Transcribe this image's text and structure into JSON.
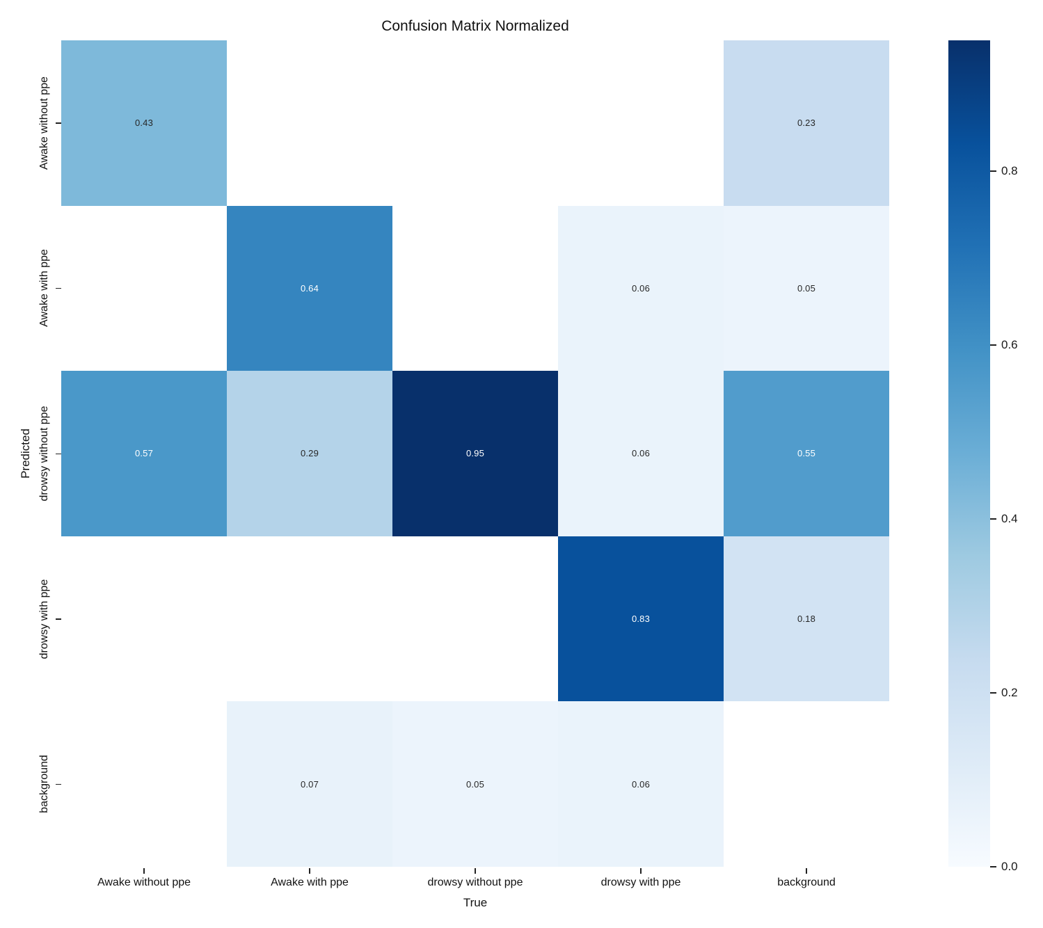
{
  "chart_data": {
    "type": "heatmap",
    "title": "Confusion Matrix Normalized",
    "xlabel": "True",
    "ylabel": "Predicted",
    "x_categories": [
      "Awake without ppe",
      "Awake with ppe",
      "drowsy without ppe",
      "drowsy with ppe",
      "background"
    ],
    "y_categories": [
      "Awake without ppe",
      "Awake with ppe",
      "drowsy without ppe",
      "drowsy with ppe",
      "background"
    ],
    "matrix": [
      [
        0.43,
        null,
        null,
        null,
        0.23
      ],
      [
        null,
        0.64,
        null,
        0.06,
        0.05
      ],
      [
        0.57,
        0.29,
        0.95,
        0.06,
        0.55
      ],
      [
        null,
        null,
        null,
        0.83,
        0.18
      ],
      [
        null,
        0.07,
        0.05,
        0.06,
        null
      ]
    ],
    "vmin": 0.0,
    "vmax": 0.95,
    "colorbar_ticks": [
      0.0,
      0.2,
      0.4,
      0.6,
      0.8
    ],
    "colormap": "Blues",
    "colormap_stops": [
      "#f7fbff",
      "#deebf7",
      "#c6dbef",
      "#9ecae1",
      "#6baed6",
      "#4292c6",
      "#2171b5",
      "#08519c",
      "#08306b"
    ],
    "empty_cell_color": "#ffffff",
    "annotation_color_on_dark": "#ffffff",
    "annotation_color_on_light": "#262626",
    "legend_position": "right",
    "grid": false
  }
}
